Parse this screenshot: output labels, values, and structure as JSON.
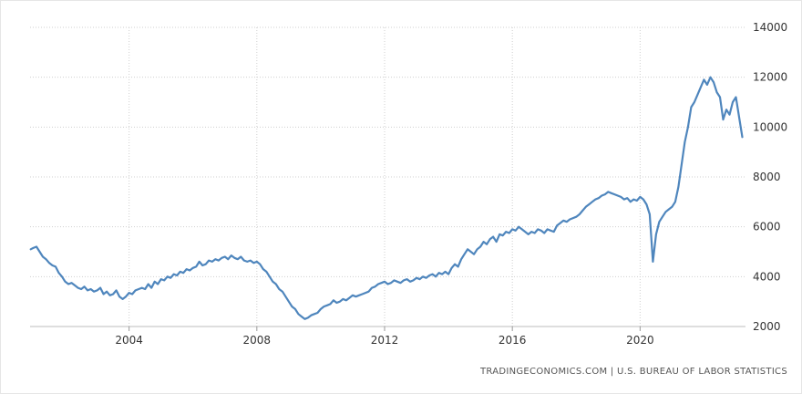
{
  "source_text": "TRADINGECONOMICS.COM | U.S. BUREAU OF LABOR STATISTICS",
  "chart_data": {
    "type": "line",
    "title": "",
    "xlabel": "",
    "ylabel": "",
    "xlim": [
      2000.9,
      2023.3
    ],
    "ylim": [
      2000,
      14000
    ],
    "xticks": [
      2004,
      2008,
      2012,
      2016,
      2020
    ],
    "yticks": [
      2000,
      4000,
      6000,
      8000,
      10000,
      12000,
      14000
    ],
    "grid": true,
    "legend": "none",
    "line_color": "#4f86bd",
    "series": [
      {
        "x": [
          2000.92,
          2001.0,
          2001.1,
          2001.2,
          2001.3,
          2001.4,
          2001.5,
          2001.6,
          2001.7,
          2001.8,
          2001.9,
          2002.0,
          2002.1,
          2002.2,
          2002.3,
          2002.4,
          2002.5,
          2002.6,
          2002.7,
          2002.8,
          2002.9,
          2003.0,
          2003.1,
          2003.2,
          2003.3,
          2003.4,
          2003.5,
          2003.6,
          2003.7,
          2003.8,
          2003.9,
          2004.0,
          2004.1,
          2004.2,
          2004.3,
          2004.4,
          2004.5,
          2004.6,
          2004.7,
          2004.8,
          2004.9,
          2005.0,
          2005.1,
          2005.2,
          2005.3,
          2005.4,
          2005.5,
          2005.6,
          2005.7,
          2005.8,
          2005.9,
          2006.0,
          2006.1,
          2006.2,
          2006.3,
          2006.4,
          2006.5,
          2006.6,
          2006.7,
          2006.8,
          2006.9,
          2007.0,
          2007.1,
          2007.2,
          2007.3,
          2007.4,
          2007.5,
          2007.6,
          2007.7,
          2007.8,
          2007.9,
          2008.0,
          2008.1,
          2008.2,
          2008.3,
          2008.4,
          2008.5,
          2008.6,
          2008.7,
          2008.8,
          2008.9,
          2009.0,
          2009.1,
          2009.2,
          2009.3,
          2009.4,
          2009.5,
          2009.6,
          2009.7,
          2009.8,
          2009.9,
          2010.0,
          2010.1,
          2010.2,
          2010.3,
          2010.4,
          2010.5,
          2010.6,
          2010.7,
          2010.8,
          2010.9,
          2011.0,
          2011.1,
          2011.2,
          2011.3,
          2011.4,
          2011.5,
          2011.6,
          2011.7,
          2011.8,
          2011.9,
          2012.0,
          2012.1,
          2012.2,
          2012.3,
          2012.4,
          2012.5,
          2012.6,
          2012.7,
          2012.8,
          2012.9,
          2013.0,
          2013.1,
          2013.2,
          2013.3,
          2013.4,
          2013.5,
          2013.6,
          2013.7,
          2013.8,
          2013.9,
          2014.0,
          2014.1,
          2014.2,
          2014.3,
          2014.4,
          2014.5,
          2014.6,
          2014.7,
          2014.8,
          2014.9,
          2015.0,
          2015.1,
          2015.2,
          2015.3,
          2015.4,
          2015.5,
          2015.6,
          2015.7,
          2015.8,
          2015.9,
          2016.0,
          2016.1,
          2016.2,
          2016.3,
          2016.4,
          2016.5,
          2016.6,
          2016.7,
          2016.8,
          2016.9,
          2017.0,
          2017.1,
          2017.2,
          2017.3,
          2017.4,
          2017.5,
          2017.6,
          2017.7,
          2017.8,
          2017.9,
          2018.0,
          2018.1,
          2018.2,
          2018.3,
          2018.4,
          2018.5,
          2018.6,
          2018.7,
          2018.8,
          2018.9,
          2019.0,
          2019.1,
          2019.2,
          2019.3,
          2019.4,
          2019.5,
          2019.6,
          2019.7,
          2019.8,
          2019.9,
          2020.0,
          2020.1,
          2020.2,
          2020.3,
          2020.4,
          2020.5,
          2020.6,
          2020.7,
          2020.8,
          2020.9,
          2021.0,
          2021.1,
          2021.2,
          2021.3,
          2021.4,
          2021.5,
          2021.6,
          2021.7,
          2021.8,
          2021.9,
          2022.0,
          2022.1,
          2022.2,
          2022.3,
          2022.4,
          2022.5,
          2022.6,
          2022.7,
          2022.8,
          2022.9,
          2023.0,
          2023.1,
          2023.2
        ],
        "values": [
          5100,
          5150,
          5200,
          5000,
          4800,
          4700,
          4550,
          4450,
          4400,
          4150,
          4000,
          3800,
          3700,
          3750,
          3650,
          3550,
          3500,
          3600,
          3450,
          3500,
          3400,
          3450,
          3550,
          3300,
          3400,
          3250,
          3300,
          3450,
          3200,
          3100,
          3200,
          3350,
          3300,
          3450,
          3500,
          3550,
          3500,
          3700,
          3550,
          3800,
          3700,
          3900,
          3850,
          4000,
          3950,
          4100,
          4050,
          4200,
          4150,
          4300,
          4250,
          4350,
          4400,
          4600,
          4450,
          4500,
          4650,
          4600,
          4700,
          4650,
          4750,
          4800,
          4700,
          4850,
          4750,
          4700,
          4800,
          4650,
          4600,
          4650,
          4550,
          4600,
          4500,
          4300,
          4200,
          4000,
          3800,
          3700,
          3500,
          3400,
          3200,
          3000,
          2800,
          2700,
          2500,
          2400,
          2300,
          2350,
          2450,
          2500,
          2550,
          2700,
          2800,
          2850,
          2900,
          3050,
          2950,
          3000,
          3100,
          3050,
          3150,
          3250,
          3200,
          3250,
          3300,
          3350,
          3400,
          3550,
          3600,
          3700,
          3750,
          3800,
          3700,
          3750,
          3850,
          3800,
          3750,
          3850,
          3900,
          3800,
          3850,
          3950,
          3900,
          4000,
          3950,
          4050,
          4100,
          4000,
          4150,
          4100,
          4200,
          4100,
          4350,
          4500,
          4400,
          4700,
          4900,
          5100,
          5000,
          4900,
          5100,
          5200,
          5400,
          5300,
          5500,
          5600,
          5400,
          5700,
          5650,
          5800,
          5750,
          5900,
          5850,
          6000,
          5900,
          5800,
          5700,
          5800,
          5750,
          5900,
          5850,
          5750,
          5900,
          5850,
          5800,
          6050,
          6150,
          6250,
          6200,
          6300,
          6350,
          6400,
          6500,
          6650,
          6800,
          6900,
          7000,
          7100,
          7150,
          7250,
          7300,
          7400,
          7350,
          7300,
          7250,
          7200,
          7100,
          7150,
          7000,
          7100,
          7050,
          7200,
          7100,
          6900,
          6500,
          4600,
          5700,
          6200,
          6400,
          6600,
          6700,
          6800,
          7000,
          7600,
          8500,
          9400,
          10000,
          10800,
          11000,
          11300,
          11600,
          11900,
          11700,
          12000,
          11800,
          11400,
          11200,
          10300,
          10700,
          10500,
          11000,
          11200,
          10400,
          9600
        ]
      }
    ]
  }
}
